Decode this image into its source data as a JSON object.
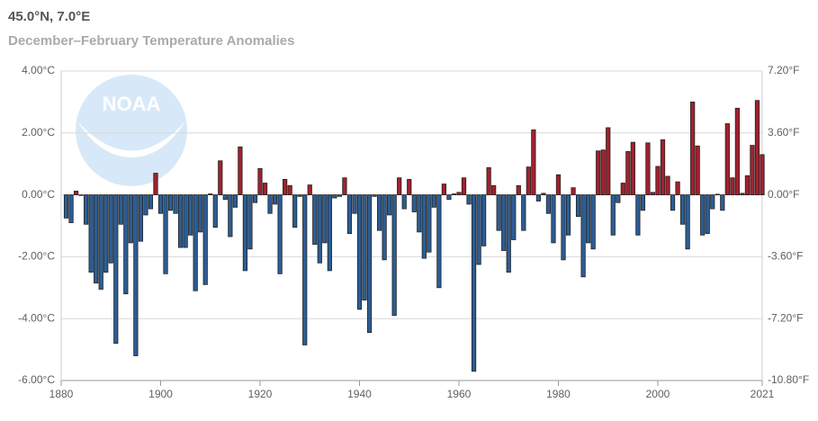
{
  "chart_data": {
    "type": "bar",
    "title": "45.0°N, 7.0°E",
    "subtitle": "December–February Temperature Anomalies",
    "logo_text": "NOAA",
    "x": [
      1881,
      1882,
      1883,
      1884,
      1885,
      1886,
      1887,
      1888,
      1889,
      1890,
      1891,
      1892,
      1893,
      1894,
      1895,
      1896,
      1897,
      1898,
      1899,
      1900,
      1901,
      1902,
      1903,
      1904,
      1905,
      1906,
      1907,
      1908,
      1909,
      1910,
      1911,
      1912,
      1913,
      1914,
      1915,
      1916,
      1917,
      1918,
      1919,
      1920,
      1921,
      1922,
      1923,
      1924,
      1925,
      1926,
      1927,
      1928,
      1929,
      1930,
      1931,
      1932,
      1933,
      1934,
      1935,
      1936,
      1937,
      1938,
      1939,
      1940,
      1941,
      1942,
      1943,
      1944,
      1945,
      1946,
      1947,
      1948,
      1949,
      1950,
      1951,
      1952,
      1953,
      1954,
      1955,
      1956,
      1957,
      1958,
      1959,
      1960,
      1961,
      1962,
      1963,
      1964,
      1965,
      1966,
      1967,
      1968,
      1969,
      1970,
      1971,
      1972,
      1973,
      1974,
      1975,
      1976,
      1977,
      1978,
      1979,
      1980,
      1981,
      1982,
      1983,
      1984,
      1985,
      1986,
      1987,
      1988,
      1989,
      1990,
      1991,
      1992,
      1993,
      1994,
      1995,
      1996,
      1997,
      1998,
      1999,
      2000,
      2001,
      2002,
      2003,
      2004,
      2005,
      2006,
      2007,
      2008,
      2009,
      2010,
      2011,
      2012,
      2013,
      2014,
      2015,
      2016,
      2017,
      2018,
      2019,
      2020,
      2021
    ],
    "series": [
      {
        "values": [
          -0.75,
          -0.9,
          0.12,
          -0.02,
          -0.95,
          -2.5,
          -2.85,
          -3.05,
          -2.5,
          -2.2,
          -4.8,
          -0.95,
          -3.2,
          -1.55,
          -5.2,
          -1.5,
          -0.65,
          -0.45,
          0.7,
          -0.6,
          -2.55,
          -0.5,
          -0.6,
          -1.7,
          -1.7,
          -1.3,
          -3.1,
          -1.2,
          -2.9,
          0.03,
          -1.05,
          1.1,
          -0.15,
          -1.35,
          -0.4,
          1.55,
          -2.45,
          -1.75,
          -0.25,
          0.85,
          0.38,
          -0.6,
          -0.3,
          -2.55,
          0.5,
          0.3,
          -1.05,
          -0.05,
          -4.85,
          0.32,
          -1.6,
          -2.2,
          -1.55,
          -2.45,
          -0.1,
          -0.05,
          0.55,
          -1.25,
          -0.6,
          -3.7,
          -3.4,
          -4.45,
          -0.05,
          -1.15,
          -2.1,
          -0.65,
          -3.9,
          0.55,
          -0.45,
          0.5,
          -0.55,
          -1.2,
          -2.05,
          -1.85,
          -0.4,
          -3.0,
          0.35,
          -0.15,
          0.03,
          0.08,
          0.55,
          -0.3,
          -5.7,
          -2.25,
          -1.65,
          0.88,
          0.3,
          -1.15,
          -1.8,
          -2.5,
          -1.45,
          0.3,
          -1.15,
          0.9,
          2.1,
          -0.2,
          0.05,
          -0.6,
          -1.55,
          0.65,
          -2.1,
          -1.3,
          0.23,
          -0.7,
          -2.65,
          -1.55,
          -1.75,
          1.42,
          1.45,
          2.17,
          -1.3,
          -0.25,
          0.38,
          1.4,
          1.7,
          -1.3,
          -0.5,
          1.68,
          0.08,
          0.92,
          1.78,
          0.6,
          -0.5,
          0.42,
          -0.95,
          -1.75,
          3.0,
          1.58,
          -1.3,
          -1.25,
          -0.45,
          0.02,
          -0.5,
          2.3,
          0.55,
          2.8,
          0.05,
          0.62,
          1.6,
          3.05,
          1.3
        ]
      }
    ],
    "color_above": "#a3202e",
    "color_below": "#2c5d94",
    "xlim": [
      1880,
      2021
    ],
    "xticks": [
      1880,
      1900,
      1920,
      1940,
      1960,
      1980,
      2000,
      2021
    ],
    "ylim": [
      -6,
      4
    ],
    "yticks": [
      {
        "value": -6,
        "label": "-6.00°C"
      },
      {
        "value": -4,
        "label": "-4.00°C"
      },
      {
        "value": -2,
        "label": "-2.00°C"
      },
      {
        "value": 0,
        "label": "0.00°C"
      },
      {
        "value": 2,
        "label": "2.00°C"
      },
      {
        "value": 4,
        "label": "4.00°C"
      }
    ],
    "y2lim": [
      -10.8,
      7.2
    ],
    "y2ticks": [
      {
        "value": -10.8,
        "label": "-10.80°F"
      },
      {
        "value": -7.2,
        "label": "-7.20°F"
      },
      {
        "value": -3.6,
        "label": "-3.60°F"
      },
      {
        "value": 0,
        "label": "0.00°F"
      },
      {
        "value": 3.6,
        "label": "3.60°F"
      },
      {
        "value": 7.2,
        "label": "7.20°F"
      }
    ],
    "grid": true
  }
}
